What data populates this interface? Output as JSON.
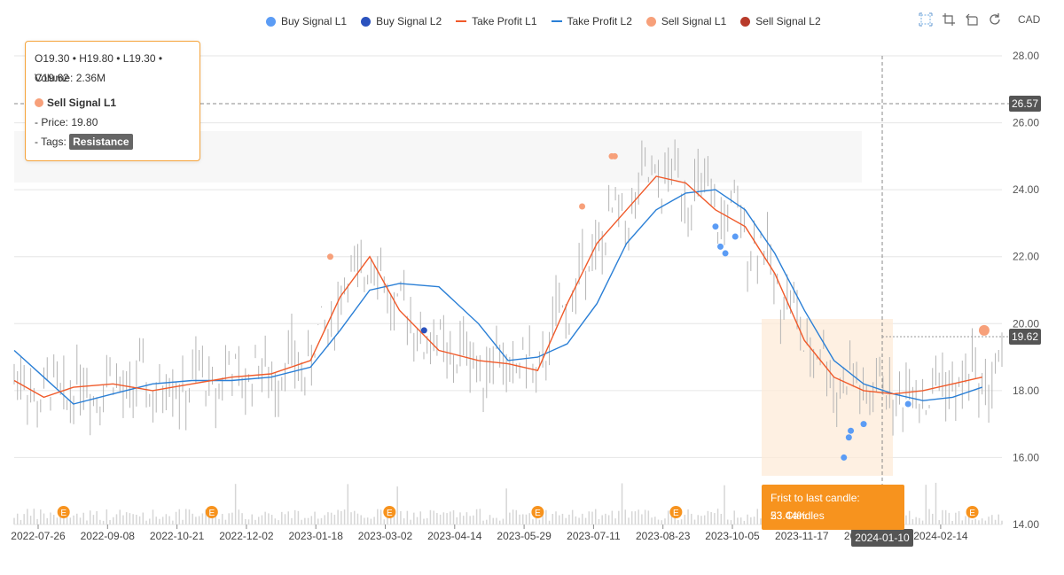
{
  "legend": [
    {
      "label": "Buy Signal L1",
      "color": "#5b9cf5",
      "kind": "dot"
    },
    {
      "label": "Buy Signal L2",
      "color": "#2a52be",
      "kind": "dot"
    },
    {
      "label": "Take Profit L1",
      "color": "#f05a2a",
      "kind": "line"
    },
    {
      "label": "Take Profit L2",
      "color": "#2a7fd6",
      "kind": "line"
    },
    {
      "label": "Sell Signal L1",
      "color": "#f7a07a",
      "kind": "dot"
    },
    {
      "label": "Sell Signal L2",
      "color": "#b83a2a",
      "kind": "dot"
    }
  ],
  "toolbar": {
    "icons": [
      "zoom-icon",
      "crop-icon",
      "undo-icon",
      "refresh-icon"
    ],
    "currency": "CAD"
  },
  "tooltip": {
    "ohlc": "O19.30 • H19.80 • L19.30 • C19.62",
    "volume": "Volume: 2.36M",
    "series": "Sell Signal L1",
    "series_color": "#f7a07a",
    "price": "- Price: 19.80",
    "tags_label": "- Tags:",
    "tag": "Resistance"
  },
  "range_info": {
    "change": "Frist to last candle: 23.44%",
    "candles": "53 Candles"
  },
  "chart_data": {
    "type": "candlestick",
    "yaxis": {
      "ticks": [
        "28.00",
        "26.00",
        "24.00",
        "22.00",
        "20.00",
        "18.00",
        "16.00",
        "14.00"
      ],
      "range": [
        14,
        28
      ],
      "position": "right"
    },
    "xaxis": {
      "ticks": [
        "2022-07-26",
        "2022-09-08",
        "2022-10-21",
        "2022-12-02",
        "2023-01-18",
        "2023-03-02",
        "2023-04-14",
        "2023-05-29",
        "2023-07-11",
        "2023-08-23",
        "2023-10-05",
        "2023-11-17",
        "2024-01-10",
        "2024-02-14"
      ]
    },
    "crosshair": {
      "price_label": "26.57",
      "date_label": "2024-01-10"
    },
    "last_price_label": "19.62",
    "grid": true,
    "take_profit_l1": [
      [
        0,
        18.3
      ],
      [
        0.03,
        17.8
      ],
      [
        0.06,
        18.1
      ],
      [
        0.1,
        18.2
      ],
      [
        0.14,
        18.0
      ],
      [
        0.18,
        18.2
      ],
      [
        0.22,
        18.4
      ],
      [
        0.26,
        18.5
      ],
      [
        0.3,
        18.9
      ],
      [
        0.33,
        20.8
      ],
      [
        0.36,
        22.0
      ],
      [
        0.39,
        20.4
      ],
      [
        0.43,
        19.2
      ],
      [
        0.47,
        18.9
      ],
      [
        0.5,
        18.8
      ],
      [
        0.53,
        18.6
      ],
      [
        0.56,
        20.6
      ],
      [
        0.59,
        22.4
      ],
      [
        0.62,
        23.4
      ],
      [
        0.65,
        24.4
      ],
      [
        0.68,
        24.2
      ],
      [
        0.71,
        23.4
      ],
      [
        0.74,
        22.9
      ],
      [
        0.77,
        21.5
      ],
      [
        0.8,
        19.5
      ],
      [
        0.83,
        18.4
      ],
      [
        0.86,
        18.0
      ],
      [
        0.89,
        17.9
      ],
      [
        0.92,
        18.0
      ],
      [
        0.95,
        18.2
      ],
      [
        0.98,
        18.4
      ]
    ],
    "take_profit_l2": [
      [
        0,
        19.2
      ],
      [
        0.03,
        18.4
      ],
      [
        0.06,
        17.6
      ],
      [
        0.1,
        17.9
      ],
      [
        0.14,
        18.2
      ],
      [
        0.18,
        18.3
      ],
      [
        0.22,
        18.3
      ],
      [
        0.26,
        18.4
      ],
      [
        0.3,
        18.7
      ],
      [
        0.33,
        19.8
      ],
      [
        0.36,
        21.0
      ],
      [
        0.39,
        21.2
      ],
      [
        0.43,
        21.1
      ],
      [
        0.47,
        20.0
      ],
      [
        0.5,
        18.9
      ],
      [
        0.53,
        19.0
      ],
      [
        0.56,
        19.4
      ],
      [
        0.59,
        20.6
      ],
      [
        0.62,
        22.4
      ],
      [
        0.65,
        23.4
      ],
      [
        0.68,
        23.9
      ],
      [
        0.71,
        24.0
      ],
      [
        0.74,
        23.4
      ],
      [
        0.77,
        22.1
      ],
      [
        0.8,
        20.4
      ],
      [
        0.83,
        18.9
      ],
      [
        0.86,
        18.2
      ],
      [
        0.89,
        17.9
      ],
      [
        0.92,
        17.7
      ],
      [
        0.95,
        17.8
      ],
      [
        0.98,
        18.1
      ]
    ],
    "buy_signal_l1": [
      [
        0.84,
        16.0
      ],
      [
        0.845,
        16.6
      ],
      [
        0.847,
        16.8
      ],
      [
        0.86,
        17.0
      ],
      [
        0.905,
        17.6
      ],
      [
        0.71,
        22.9
      ],
      [
        0.715,
        22.3
      ],
      [
        0.72,
        22.1
      ],
      [
        0.73,
        22.6
      ]
    ],
    "buy_signal_l2": [
      [
        0.415,
        19.8
      ]
    ],
    "sell_signal_l1": [
      [
        0.32,
        22.0
      ],
      [
        0.575,
        23.5
      ],
      [
        0.605,
        25.0
      ],
      [
        0.608,
        25.0
      ],
      [
        0.982,
        19.8
      ]
    ],
    "volume_events": [
      0.05,
      0.2,
      0.38,
      0.53,
      0.67,
      0.97
    ]
  }
}
